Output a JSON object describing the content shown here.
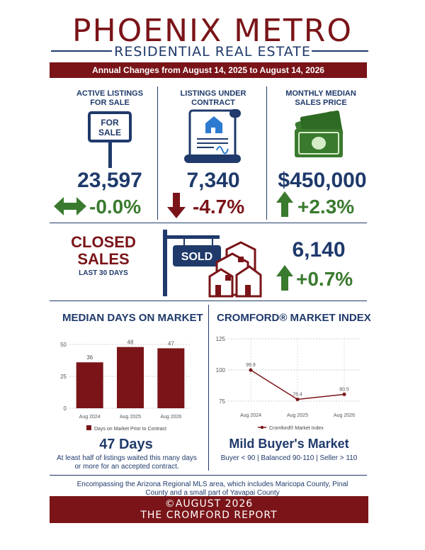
{
  "header": {
    "title": "PHOENIX METRO",
    "subtitle": "RESIDENTIAL REAL ESTATE",
    "banner": "Annual Changes from August 14, 2025 to August 14, 2026"
  },
  "stats": {
    "active": {
      "label_line1": "ACTIVE LISTINGS",
      "label_line2": "FOR SALE",
      "sign_line1": "FOR",
      "sign_line2": "SALE",
      "value": "23,597",
      "change": "-0.0%"
    },
    "contract": {
      "label_line1": "LISTINGS UNDER",
      "label_line2": "CONTRACT",
      "value": "7,340",
      "change": "-4.7%"
    },
    "price": {
      "label_line1": "MONTHLY MEDIAN",
      "label_line2": "SALES PRICE",
      "value": "$450,000",
      "change": "+2.3%"
    }
  },
  "closed": {
    "title_line1": "CLOSED",
    "title_line2": "SALES",
    "subtitle": "LAST 30 DAYS",
    "sign": "SOLD",
    "value": "6,140",
    "change": "+0.7%"
  },
  "days_on_market": {
    "title": "MEDIAN DAYS ON MARKET",
    "headline": "47 Days",
    "caption_line1": "At least half of listings waited this many days",
    "caption_line2": "or more for an accepted contract."
  },
  "market_index": {
    "title": "CROMFORD® MARKET INDEX",
    "headline": "Mild Buyer's Market",
    "scale": "Buyer < 90 | Balanced 90-110 | Seller > 110"
  },
  "footer": {
    "note_line1": "Encompassing the Arizona Regional MLS area, which includes Maricopa County, Pinal",
    "note_line2": "County and a small part of Yavapai County",
    "banner_line1": "©AUGUST 2026",
    "banner_line2": "THE CROMFORD REPORT"
  },
  "colors": {
    "navy": "#1f3a6b",
    "maroon": "#7a1418",
    "green": "#3a7a2e"
  },
  "icons": [
    "for-sale-sign-icon",
    "contract-document-icon",
    "money-icon",
    "sold-sign-icon",
    "houses-icon",
    "double-arrow-icon",
    "down-arrow-icon",
    "up-arrow-icon"
  ],
  "chart_data": [
    {
      "type": "bar",
      "categories": [
        "Aug 2024",
        "Aug 2025",
        "Aug 2026"
      ],
      "values": [
        36,
        48,
        47
      ],
      "ylim": [
        0,
        50
      ],
      "yticks": [
        0,
        25,
        50
      ],
      "series": [
        {
          "name": "Days on Market Prior to Contract",
          "values": [
            36,
            48,
            47
          ]
        }
      ],
      "legend": "bottom",
      "grid": true
    },
    {
      "type": "line",
      "categories": [
        "Aug 2024",
        "Aug 2025",
        "Aug 2026"
      ],
      "values": [
        99.9,
        76.4,
        80.5
      ],
      "ylim": [
        75,
        125
      ],
      "yticks": [
        75,
        100,
        125
      ],
      "series": [
        {
          "name": "Cromford® Market Index",
          "values": [
            99.9,
            76.4,
            80.5
          ]
        }
      ],
      "legend": "bottom",
      "grid": true
    }
  ]
}
